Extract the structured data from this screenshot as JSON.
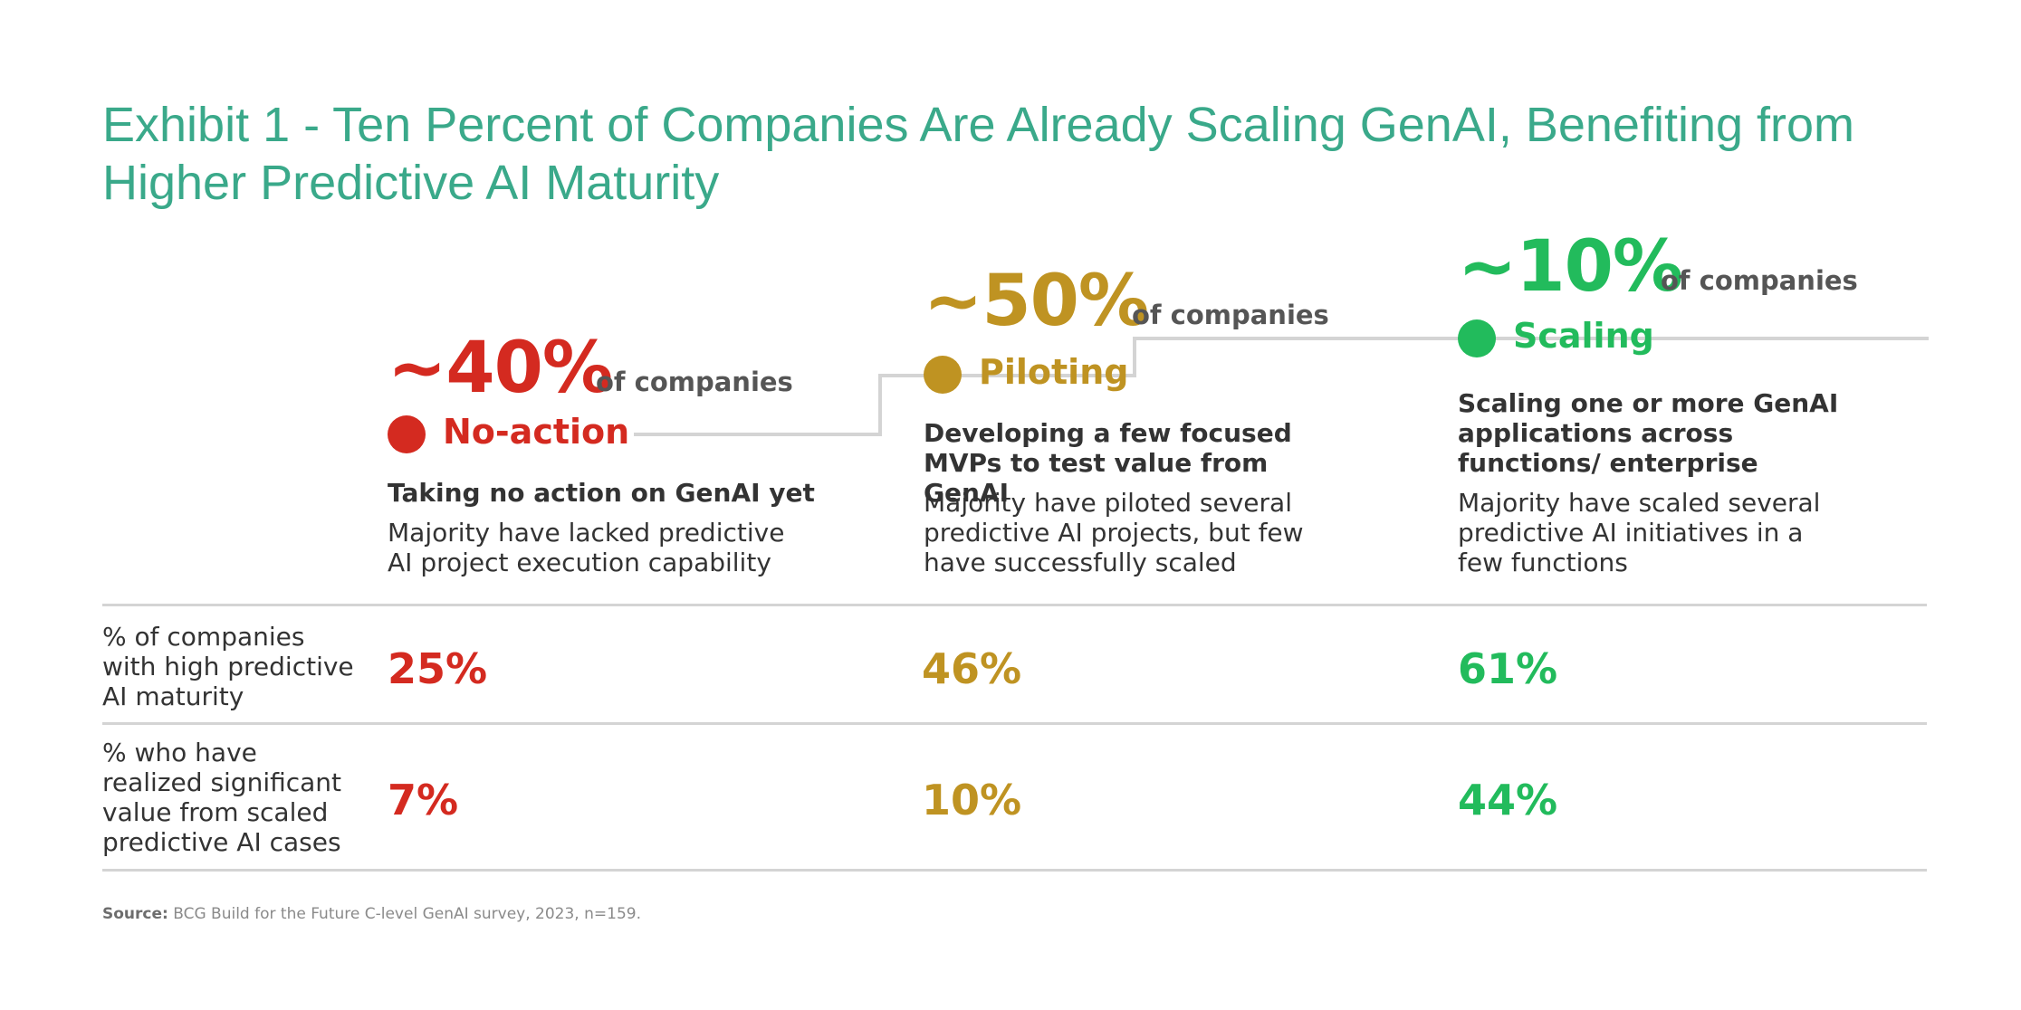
{
  "title": "Exhibit 1 - Ten Percent of Companies Are Already Scaling GenAI, Benefiting from Higher Predictive AI Maturity",
  "colors": {
    "title": "#3aa98a",
    "no_action": "#d42a20",
    "piloting": "#bf9322",
    "scaling": "#22bb5c",
    "rule": "#d4d4d4"
  },
  "stages": [
    {
      "pct": "~40%",
      "of_companies": "of companies",
      "name": "No-action",
      "heading": "Taking no action on GenAI yet",
      "description": "Majority have lacked predictive AI project execution capability"
    },
    {
      "pct": "~50%",
      "of_companies": "of companies",
      "name": "Piloting",
      "heading": "Developing a few focused MVPs to test value from GenAI",
      "description": "Majority have piloted several predictive AI projects, but few have successfully scaled"
    },
    {
      "pct": "~10%",
      "of_companies": "of companies",
      "name": "Scaling",
      "heading": "Scaling one or more GenAI applications across functions/ enterprise",
      "description": "Majority have scaled several predictive AI initiatives in a few functions"
    }
  ],
  "rows": [
    {
      "label": "% of companies with high predictive AI maturity",
      "values": [
        "25%",
        "46%",
        "61%"
      ]
    },
    {
      "label": "% who have realized significant value from scaled predictive AI cases",
      "values": [
        "7%",
        "10%",
        "44%"
      ]
    }
  ],
  "source": {
    "label": "Source:",
    "text": "BCG Build for the Future C-level GenAI survey, 2023, n=159."
  }
}
